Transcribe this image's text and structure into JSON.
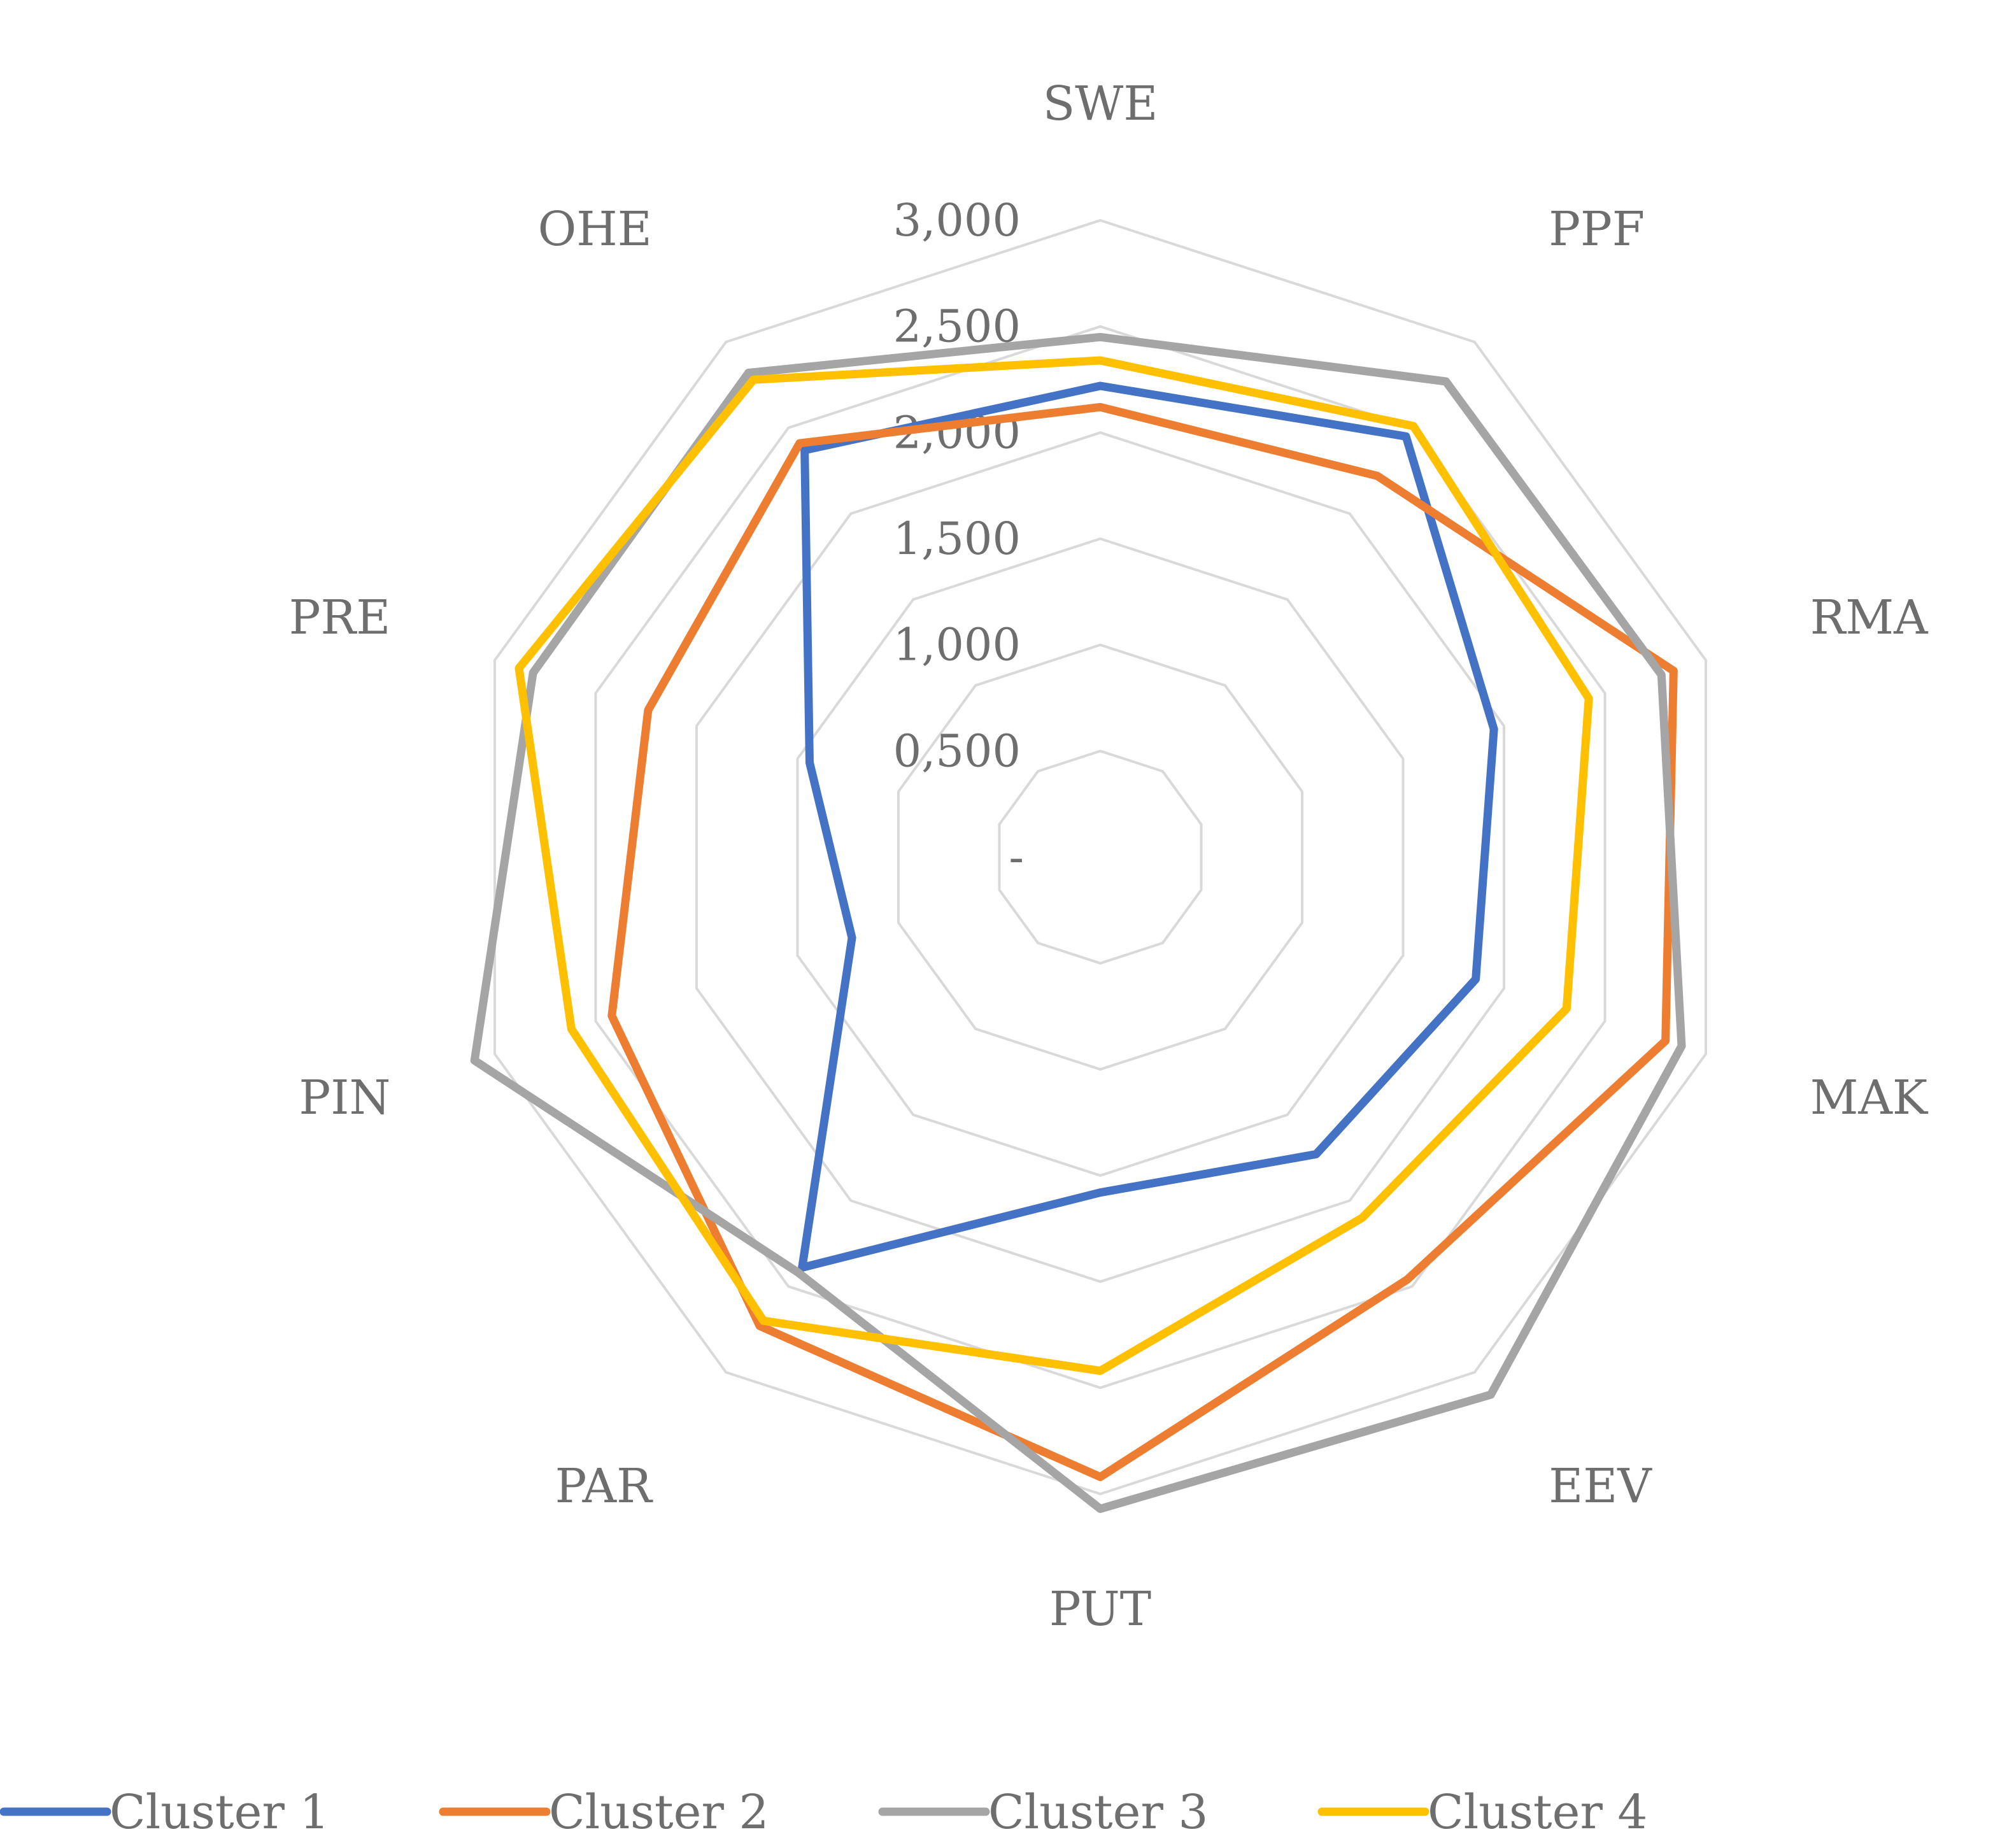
{
  "chart_data": {
    "type": "radar",
    "title": "",
    "categories": [
      "SWE",
      "PPF",
      "RMA",
      "MAK",
      "EEV",
      "PUT",
      "PAR",
      "PIN",
      "PRE",
      "OHE"
    ],
    "rlim": [
      0,
      3000
    ],
    "ticks": [
      0,
      500,
      1000,
      1500,
      2000,
      2500,
      3000
    ],
    "tick_labels": [
      "-",
      "0,500",
      "1,000",
      "1,500",
      "2,000",
      "2,500",
      "3,000"
    ],
    "grid": true,
    "legend_position": "bottom",
    "series": [
      {
        "name": "Cluster 1",
        "color": "#4472C4",
        "values": [
          2220,
          2450,
          1950,
          1860,
          1730,
          1580,
          2390,
          1230,
          1440,
          2370
        ]
      },
      {
        "name": "Cluster 2",
        "color": "#ED7D31",
        "values": [
          2120,
          2220,
          2840,
          2800,
          2460,
          2920,
          2730,
          2420,
          2240,
          2410
        ]
      },
      {
        "name": "Cluster 3",
        "color": "#A5A5A5",
        "values": [
          2450,
          2770,
          2780,
          2880,
          3130,
          3070,
          2420,
          3100,
          2810,
          2820
        ]
      },
      {
        "name": "Cluster 4",
        "color": "#FFC000",
        "values": [
          2340,
          2510,
          2420,
          2310,
          2100,
          2420,
          2700,
          2620,
          2880,
          2780
        ]
      }
    ]
  }
}
